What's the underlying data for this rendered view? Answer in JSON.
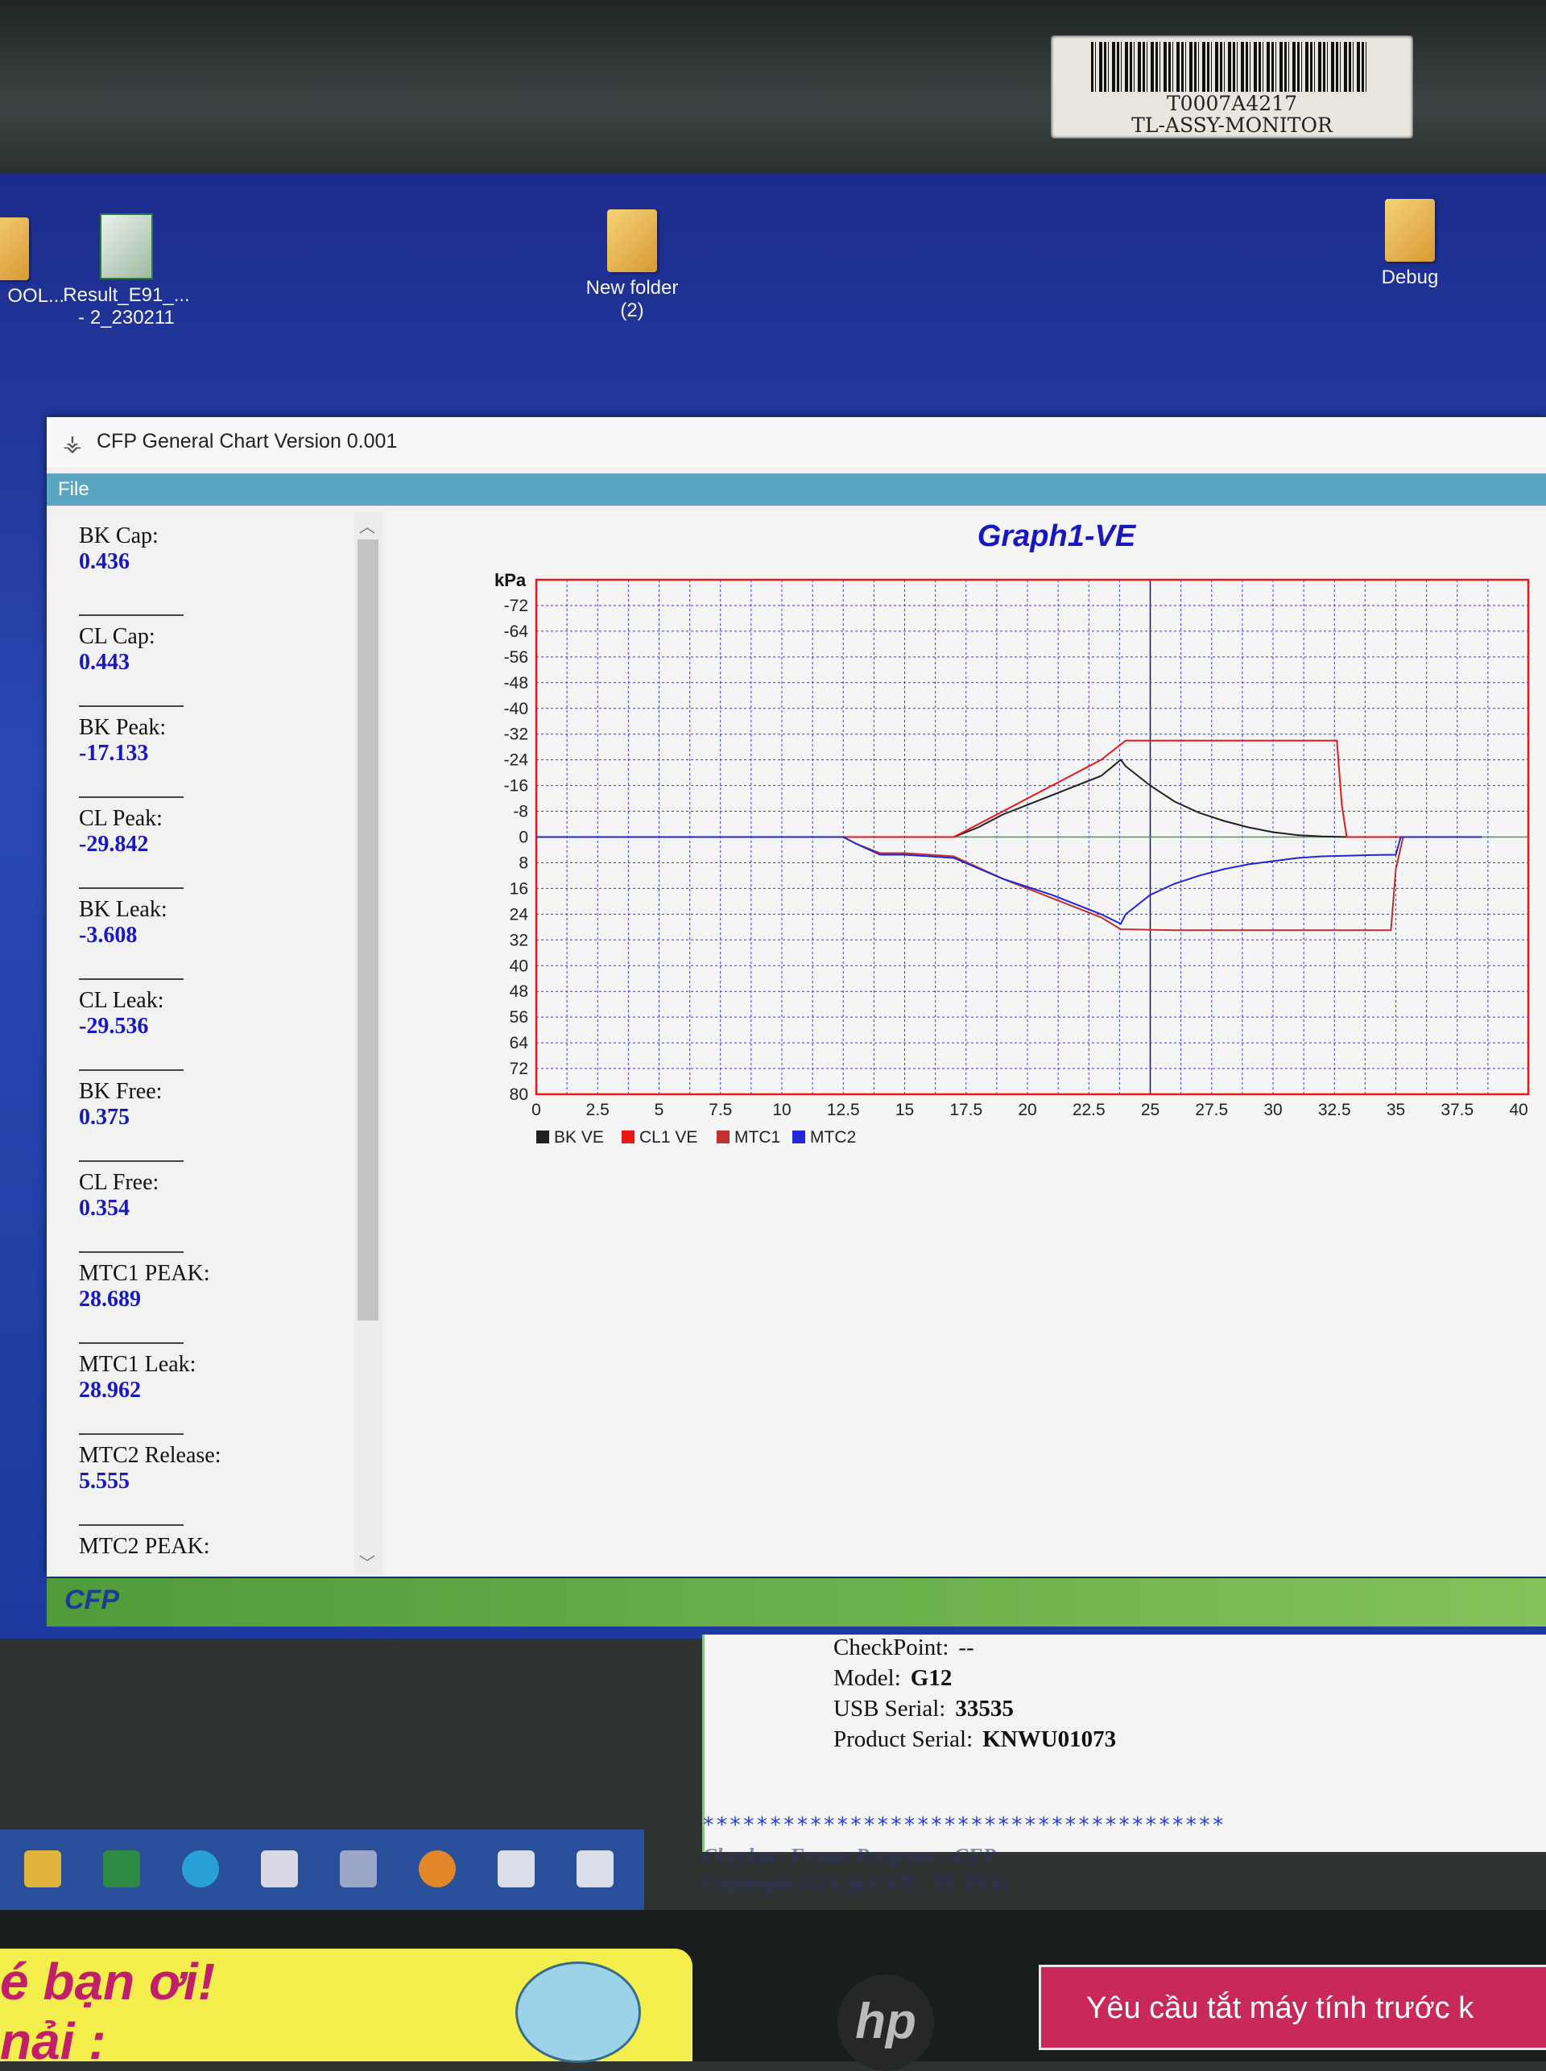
{
  "asset_label": {
    "code": "T0007A4217",
    "name": "TL-ASSY-MONITOR"
  },
  "desktop_icons": [
    {
      "label": "OOL...",
      "type": "folder"
    },
    {
      "label": "Result_E91_...\n- 2_230211",
      "type": "excel"
    },
    {
      "label": "New folder\n(2)",
      "type": "folder"
    },
    {
      "label": "Debug",
      "type": "folder"
    }
  ],
  "window": {
    "title": "CFP General Chart Version 0.001",
    "menu": [
      "File"
    ]
  },
  "stats": [
    {
      "label": "BK Cap:",
      "value": "0.436"
    },
    {
      "label": "CL Cap:",
      "value": "0.443"
    },
    {
      "label": "BK Peak:",
      "value": "-17.133"
    },
    {
      "label": "CL Peak:",
      "value": "-29.842"
    },
    {
      "label": "BK Leak:",
      "value": "-3.608"
    },
    {
      "label": "CL Leak:",
      "value": "-29.536"
    },
    {
      "label": "BK Free:",
      "value": "0.375"
    },
    {
      "label": "CL Free:",
      "value": "0.354"
    },
    {
      "label": "MTC1 PEAK:",
      "value": "28.689"
    },
    {
      "label": "MTC1 Leak:",
      "value": "28.962"
    },
    {
      "label": "MTC2 Release:",
      "value": "5.555"
    },
    {
      "label": "MTC2 PEAK:",
      "value": ""
    }
  ],
  "chart_data": {
    "type": "line",
    "title": "Graph1-VE",
    "ylabel": "kPa",
    "xlabel": "",
    "xlim": [
      0,
      40
    ],
    "ylim": [
      -80,
      80
    ],
    "y_inverted": true,
    "x_ticks": [
      "0",
      "2.5",
      "5",
      "7.5",
      "10",
      "12.5",
      "15",
      "17.5",
      "20",
      "22.5",
      "25",
      "27.5",
      "30",
      "32.5",
      "35",
      "37.5",
      "40"
    ],
    "y_ticks": [
      "-72",
      "-64",
      "-56",
      "-48",
      "-40",
      "-32",
      "-24",
      "-16",
      "-8",
      "0",
      "8",
      "16",
      "24",
      "32",
      "40",
      "48",
      "56",
      "64",
      "72",
      "80"
    ],
    "grid": true,
    "legend": "bottom-left",
    "series": [
      {
        "name": "BK VE",
        "color": "#202020",
        "x": [
          0,
          12,
          17,
          18,
          19,
          20,
          21,
          22,
          23,
          23.8,
          24,
          25,
          26,
          27,
          28,
          29,
          30,
          31,
          32,
          33,
          34,
          35,
          36,
          38.5
        ],
        "y": [
          0,
          0,
          0,
          -3,
          -7,
          -10,
          -13,
          -16,
          -19,
          -24,
          -22,
          -16,
          -11,
          -7.5,
          -5,
          -3,
          -1.5,
          -0.6,
          -0.2,
          0,
          0,
          0,
          0,
          0
        ]
      },
      {
        "name": "CL1 VE",
        "color": "#e81818",
        "x": [
          0,
          16.5,
          17,
          19,
          21,
          23,
          24,
          26,
          30,
          32.6,
          32.8,
          33,
          36,
          38.5
        ],
        "y": [
          0,
          0,
          0,
          -8,
          -16,
          -24,
          -30,
          -30,
          -30,
          -30,
          -10,
          0,
          0,
          0
        ]
      },
      {
        "name": "MTC1",
        "color": "#c03030",
        "x": [
          0,
          12.5,
          13,
          14,
          15,
          17,
          19,
          21,
          23,
          23.8,
          24,
          26,
          30,
          34.8,
          35,
          35.3,
          38.5
        ],
        "y": [
          0,
          0,
          2,
          5,
          5,
          6,
          13,
          19,
          25,
          28.7,
          28.7,
          29,
          29,
          29,
          10,
          0,
          0
        ]
      },
      {
        "name": "MTC2",
        "color": "#2424d8",
        "x": [
          0,
          12.5,
          13,
          14,
          15,
          17,
          19,
          21,
          23,
          23.8,
          24,
          25,
          26,
          27,
          28,
          29,
          30,
          31,
          32,
          33,
          34,
          35,
          35.2,
          38.5
        ],
        "y": [
          0,
          0,
          2,
          5.5,
          5.5,
          6.5,
          13,
          18,
          24,
          27,
          24,
          18,
          14.5,
          12,
          10,
          8.5,
          7.5,
          6.5,
          6,
          5.8,
          5.6,
          5.5,
          0,
          0
        ]
      }
    ]
  },
  "info": {
    "checkpoint_label": "CheckPoint:",
    "checkpoint_value": "--",
    "model_label": "Model:",
    "model_value": "G12",
    "usb_label": "USB Serial:",
    "usb_value": "33535",
    "product_label": "Product Serial:",
    "product_value": "KNWU01073"
  },
  "stars": "***************************************",
  "footer": {
    "line1": "Checker: Frame Program - CFP",
    "line2": "Copyright 2016 @ CVN - TL PED"
  },
  "sticker_left": {
    "line1": "é bạn ơi!",
    "line2": "nải :"
  },
  "sticker_right": "Yêu cầu tắt máy tính trước k",
  "logo_text": "CFP",
  "hp_text": "hp",
  "taskbar_icons": [
    "file-explorer-icon",
    "excel-icon",
    "edge-icon",
    "app-icon",
    "network-icon",
    "pumpkin-icon",
    "cfp-icon",
    "cfp-icon"
  ],
  "colors": {
    "desktop": "#2a47b3",
    "menubar": "#5aa6c2",
    "title": "#1818c0",
    "grid": "#2c2ce0",
    "frame": "#e81818"
  }
}
